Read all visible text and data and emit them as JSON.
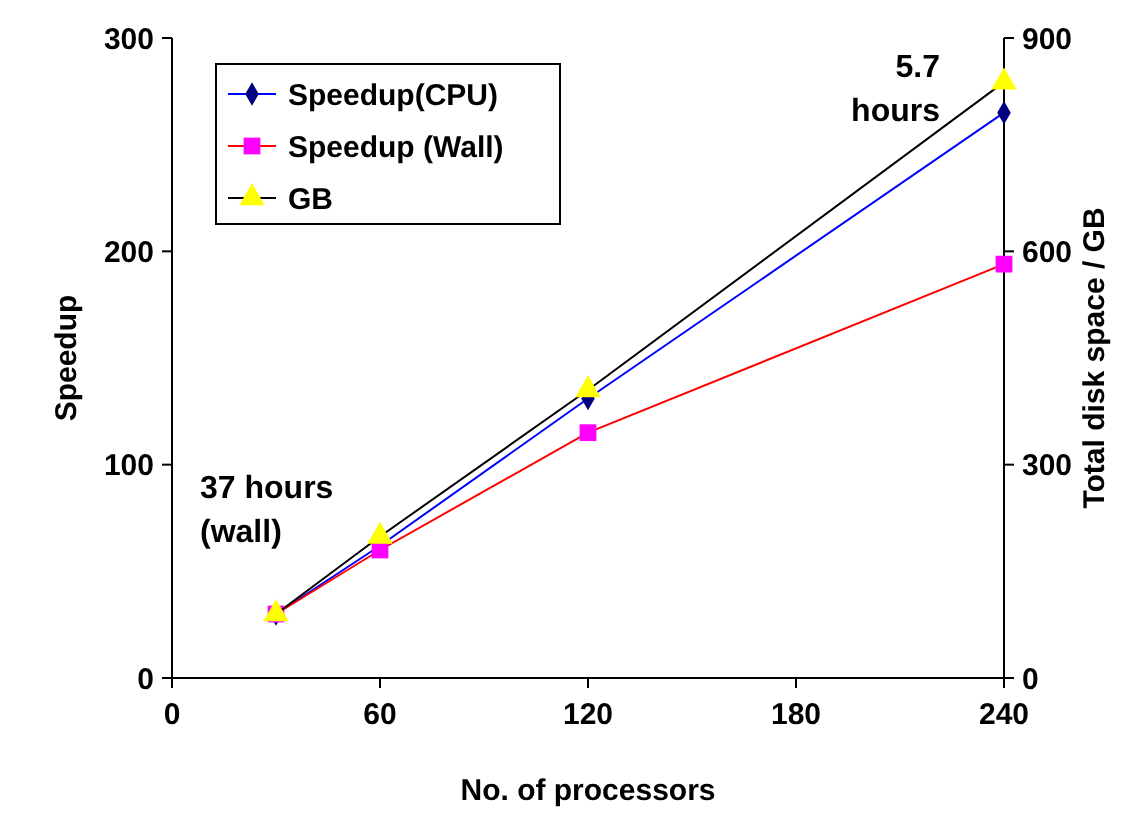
{
  "chart_data": {
    "type": "line",
    "xlabel": "No. of processors",
    "ylabel": "Speedup",
    "y2label": "Total disk space / GB",
    "x": [
      30,
      60,
      120,
      240
    ],
    "xlim": [
      0,
      240
    ],
    "xticks": [
      0,
      60,
      120,
      180,
      240
    ],
    "ylim": [
      0,
      300
    ],
    "yticks": [
      0,
      100,
      200,
      300
    ],
    "y2lim": [
      0,
      900
    ],
    "y2ticks": [
      0,
      300,
      600,
      900
    ],
    "legend": "top left",
    "grid": false,
    "series": [
      {
        "name": "Speedup(CPU)",
        "color": "#0000ff",
        "marker": "diamond",
        "colors": [
          "#000080",
          "#000080",
          "#000080",
          "#000080"
        ],
        "values": [
          30,
          62,
          131,
          265
        ]
      },
      {
        "name": "Speedup (Wall)",
        "color": "#ff0000",
        "marker": "square",
        "colors": [
          "#ff00ff",
          "#ff00ff",
          "#ff00ff",
          "#ff00ff"
        ],
        "values": [
          30,
          60,
          115,
          194
        ]
      },
      {
        "name": "GB",
        "color": "#000000",
        "marker": "triangle",
        "colors": [
          "#ffff00",
          "#ffff00",
          "#ffff00",
          "#ffff00"
        ],
        "axis": "y2",
        "values": [
          90,
          199,
          405,
          838
        ]
      }
    ],
    "annotations": [
      {
        "text": "37 hours\n(wall)",
        "x": 30,
        "y": 30
      },
      {
        "text": "5.7\nhours",
        "x": 240,
        "y": 265
      }
    ]
  }
}
